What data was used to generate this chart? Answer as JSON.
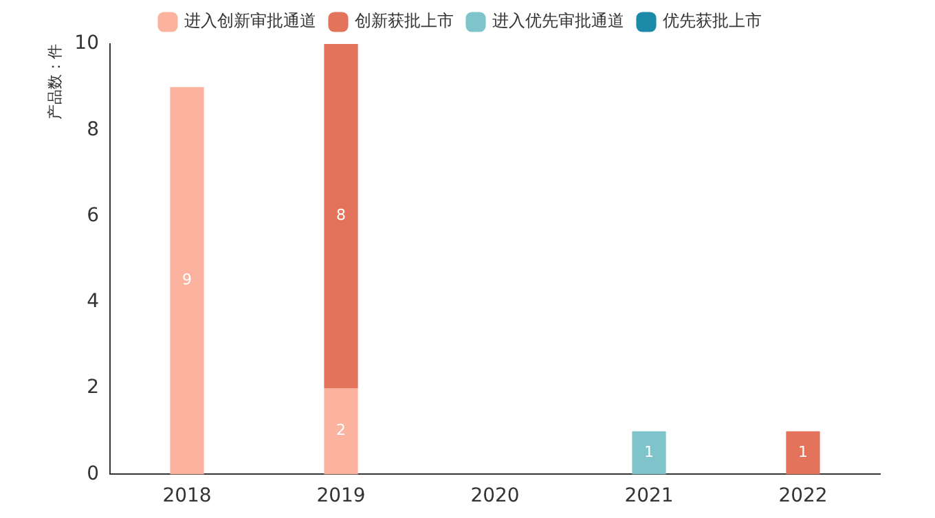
{
  "chart_data": {
    "type": "bar",
    "ylabel": "产品数：件",
    "categories": [
      "2018",
      "2019",
      "2020",
      "2021",
      "2022"
    ],
    "stacked": true,
    "ylim": [
      0,
      10
    ],
    "yticks": [
      0,
      2,
      4,
      6,
      8,
      10
    ],
    "grid": false,
    "legend": "top",
    "data_labels": true,
    "series": [
      {
        "name": "进入创新审批通道",
        "color": "#fbb3a0",
        "values": [
          9,
          2,
          null,
          null,
          null
        ]
      },
      {
        "name": "创新获批上市",
        "color": "#e3735a",
        "values": [
          null,
          8,
          null,
          null,
          1
        ]
      },
      {
        "name": "进入优先审批通道",
        "color": "#80c4cb",
        "values": [
          null,
          null,
          null,
          1,
          null
        ]
      },
      {
        "name": "优先获批上市",
        "color": "#1a8aa8",
        "values": [
          null,
          null,
          null,
          null,
          null
        ]
      }
    ]
  }
}
